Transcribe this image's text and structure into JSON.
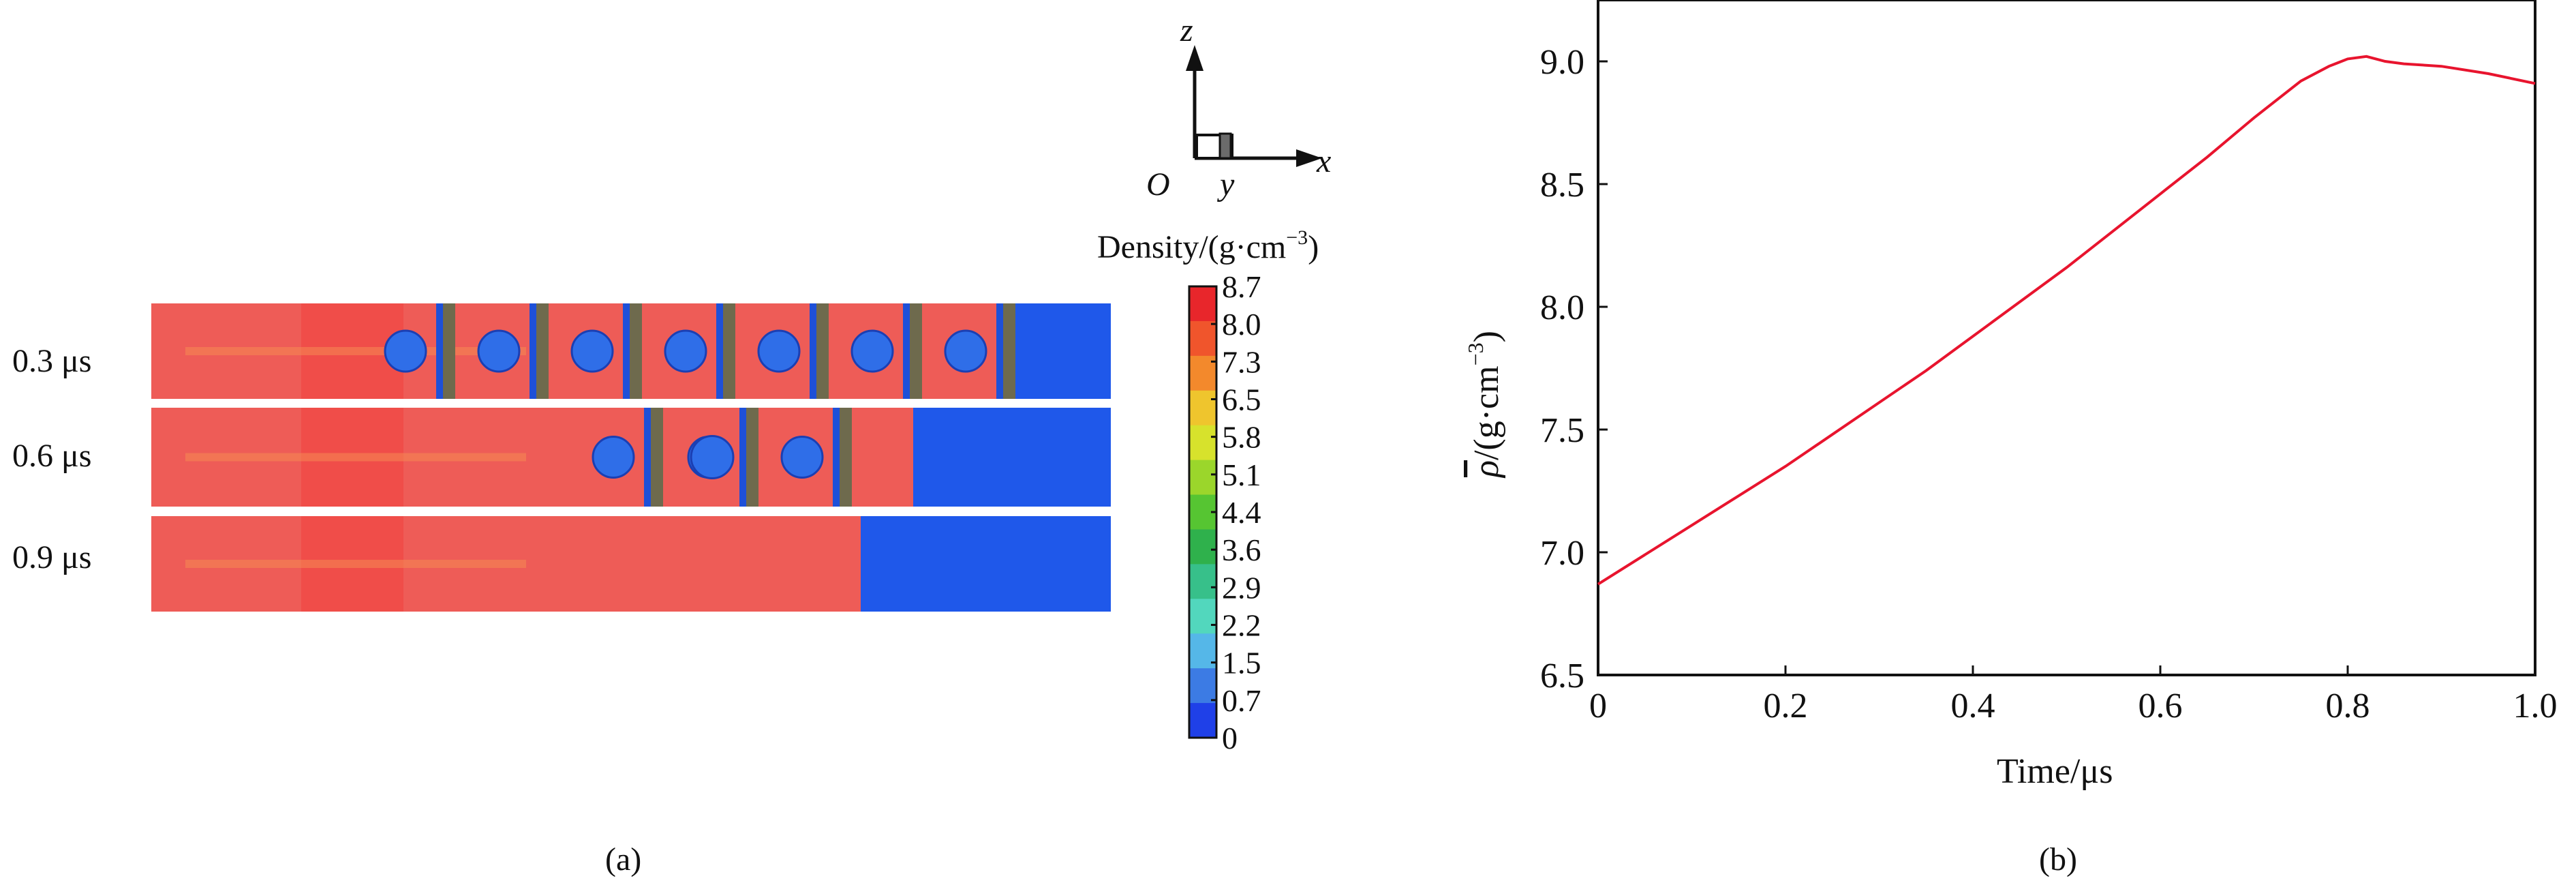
{
  "panel_a": {
    "caption": "(a)",
    "axes": {
      "z": "z",
      "origin": "O",
      "y": "y",
      "x": "x"
    },
    "colorbar_title": "Density/(g·cm",
    "colorbar_title_exp": "−3",
    "colorbar_title_close": ")",
    "colorbar_ticks": [
      "8.7",
      "8.0",
      "7.3",
      "6.5",
      "5.8",
      "5.1",
      "4.4",
      "3.6",
      "2.9",
      "2.2",
      "1.5",
      "0.7",
      "0"
    ],
    "colorbar_colors": [
      "#e8262b",
      "#f0552c",
      "#f3892c",
      "#efc52d",
      "#d7e22c",
      "#9bd62b",
      "#56c532",
      "#2fb14c",
      "#37c08a",
      "#52d7bd",
      "#55b7e8",
      "#3c7be4",
      "#1f40e8"
    ],
    "rows": [
      {
        "label": "0.3 μs"
      },
      {
        "label": "0.6 μs"
      },
      {
        "label": "0.9 μs"
      }
    ]
  },
  "panel_b": {
    "caption": "(b)",
    "chart_data": {
      "type": "line",
      "xlabel": "Time/μs",
      "ylabel_symbol": "ρ",
      "ylabel_unit": "/(g·cm",
      "ylabel_exp": "−3",
      "ylabel_close": ")",
      "xlim": [
        0,
        1.0
      ],
      "ylim": [
        6.5,
        9.25
      ],
      "xticks": [
        "0",
        "0.2",
        "0.4",
        "0.6",
        "0.8",
        "1.0"
      ],
      "yticks": [
        "6.5",
        "7.0",
        "7.5",
        "8.0",
        "8.5",
        "9.0"
      ],
      "line_color": "#e8142e",
      "series": [
        {
          "x": [
            0,
            0.05,
            0.1,
            0.15,
            0.2,
            0.25,
            0.3,
            0.35,
            0.4,
            0.45,
            0.5,
            0.55,
            0.6,
            0.65,
            0.7,
            0.75,
            0.78,
            0.8,
            0.82,
            0.84,
            0.86,
            0.9,
            0.95,
            1.0
          ],
          "y": [
            6.87,
            6.99,
            7.11,
            7.23,
            7.35,
            7.48,
            7.61,
            7.74,
            7.88,
            8.02,
            8.16,
            8.31,
            8.46,
            8.61,
            8.77,
            8.92,
            8.98,
            9.01,
            9.02,
            9.0,
            8.99,
            8.98,
            8.95,
            8.91
          ]
        }
      ]
    }
  }
}
